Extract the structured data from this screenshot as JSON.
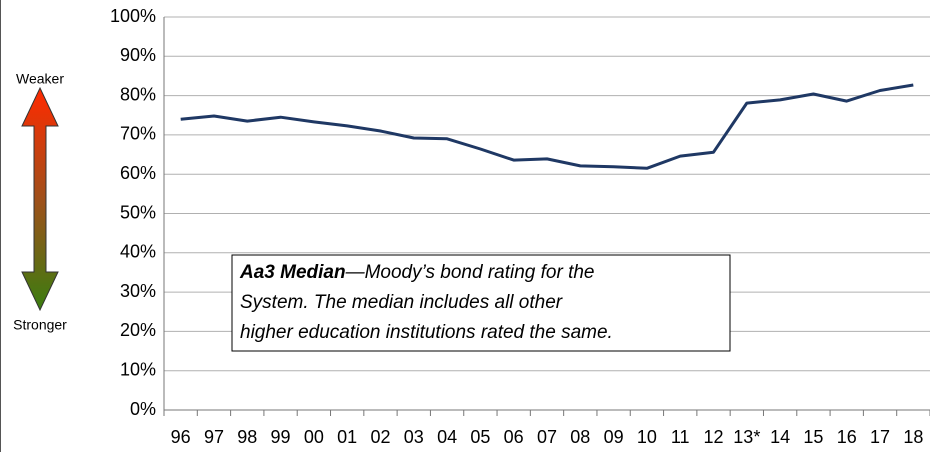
{
  "chart_data": {
    "type": "line",
    "categories": [
      "96",
      "97",
      "98",
      "99",
      "00",
      "01",
      "02",
      "03",
      "04",
      "05",
      "06",
      "07",
      "08",
      "09",
      "10",
      "11",
      "12",
      "13*",
      "14",
      "15",
      "16",
      "17",
      "18"
    ],
    "series": [
      {
        "name": null,
        "color": "#1f3864",
        "values": [
          74.0,
          74.8,
          73.5,
          74.5,
          73.3,
          72.3,
          71.0,
          69.2,
          69.0,
          66.4,
          63.6,
          63.9,
          62.1,
          61.9,
          61.5,
          64.6,
          65.6,
          78.1,
          78.9,
          80.4,
          78.6,
          81.3,
          82.7
        ]
      }
    ],
    "ylim": [
      0,
      100
    ],
    "yticks": [
      {
        "value": 0,
        "label": "0%"
      },
      {
        "value": 10,
        "label": "10%"
      },
      {
        "value": 20,
        "label": "20%"
      },
      {
        "value": 30,
        "label": "30%"
      },
      {
        "value": 40,
        "label": "40%"
      },
      {
        "value": 50,
        "label": "50%"
      },
      {
        "value": 60,
        "label": "60%"
      },
      {
        "value": 70,
        "label": "70%"
      },
      {
        "value": 80,
        "label": "80%"
      },
      {
        "value": 90,
        "label": "90%"
      },
      {
        "value": 100,
        "label": "100%"
      }
    ],
    "grid": true,
    "scale_labels": {
      "top": "Weaker",
      "bottom": "Stronger"
    },
    "annotation": {
      "title": "Aa3 Median",
      "lines": [
        "—Moody’s bond rating for the",
        "System. The median includes all other",
        "higher education institutions rated the same."
      ]
    }
  }
}
